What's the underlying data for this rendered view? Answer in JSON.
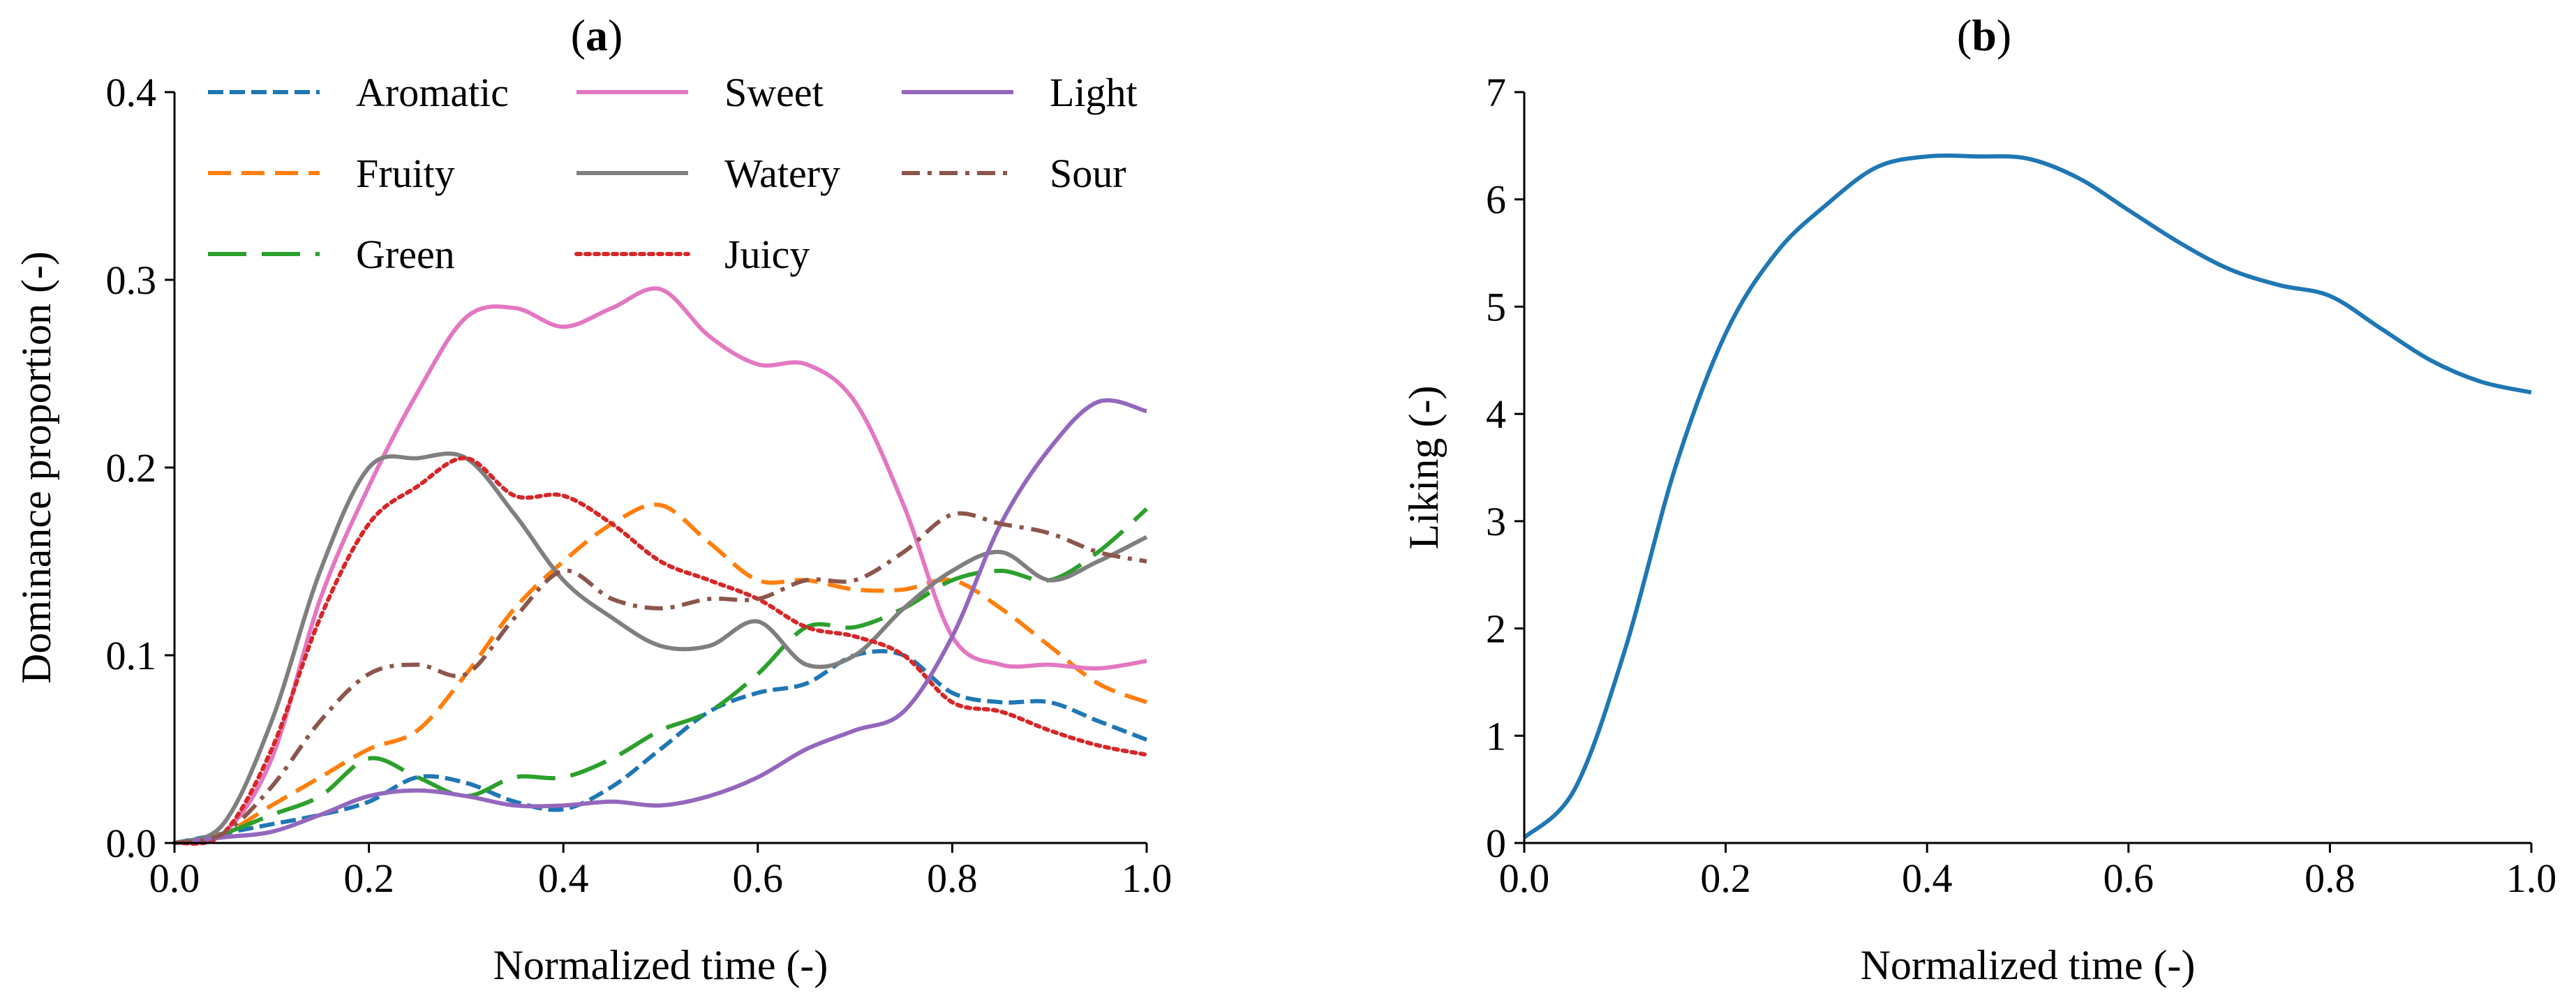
{
  "chart_data": [
    {
      "type": "line",
      "panel": "a",
      "title": "(a)",
      "title_bold": "a",
      "xlabel": "Normalized time (-)",
      "ylabel": "Dominance proportion (-)",
      "xlim": [
        0,
        1
      ],
      "ylim": [
        0,
        0.4
      ],
      "xticks": [
        "0.0",
        "0.2",
        "0.4",
        "0.6",
        "0.8",
        "1.0"
      ],
      "yticks": [
        "0.0",
        "0.1",
        "0.2",
        "0.3",
        "0.4"
      ],
      "legend_position": "top, three columns",
      "x": [
        0,
        0.05,
        0.1,
        0.15,
        0.2,
        0.25,
        0.3,
        0.35,
        0.4,
        0.45,
        0.5,
        0.55,
        0.6,
        0.65,
        0.7,
        0.75,
        0.8,
        0.85,
        0.9,
        0.95,
        1.0
      ],
      "series": [
        {
          "name": "Aromatic",
          "color": "#1f77b4",
          "dash": "dashed",
          "values": [
            0,
            0.005,
            0.01,
            0.015,
            0.022,
            0.035,
            0.032,
            0.022,
            0.018,
            0.03,
            0.05,
            0.07,
            0.08,
            0.085,
            0.1,
            0.1,
            0.08,
            0.075,
            0.075,
            0.065,
            0.055
          ]
        },
        {
          "name": "Fruity",
          "color": "#ff7f0e",
          "dash": "medium-dashed",
          "values": [
            0,
            0.005,
            0.02,
            0.035,
            0.05,
            0.06,
            0.09,
            0.125,
            0.15,
            0.17,
            0.18,
            0.16,
            0.14,
            0.14,
            0.135,
            0.135,
            0.14,
            0.125,
            0.105,
            0.085,
            0.075
          ]
        },
        {
          "name": "Green",
          "color": "#2ca02c",
          "dash": "long-dashed",
          "values": [
            0,
            0.005,
            0.015,
            0.025,
            0.045,
            0.035,
            0.025,
            0.035,
            0.035,
            0.045,
            0.06,
            0.07,
            0.09,
            0.115,
            0.115,
            0.125,
            0.14,
            0.145,
            0.14,
            0.155,
            0.178
          ]
        },
        {
          "name": "Sweet",
          "color": "#e377c2",
          "dash": "solid",
          "values": [
            0,
            0.005,
            0.045,
            0.13,
            0.19,
            0.24,
            0.28,
            0.285,
            0.275,
            0.285,
            0.295,
            0.27,
            0.255,
            0.255,
            0.235,
            0.18,
            0.11,
            0.095,
            0.095,
            0.093,
            0.097
          ]
        },
        {
          "name": "Watery",
          "color": "#7f7f7f",
          "dash": "solid",
          "values": [
            0,
            0.01,
            0.065,
            0.145,
            0.2,
            0.205,
            0.205,
            0.175,
            0.14,
            0.12,
            0.105,
            0.105,
            0.118,
            0.095,
            0.1,
            0.125,
            0.145,
            0.155,
            0.14,
            0.15,
            0.163
          ]
        },
        {
          "name": "Juicy",
          "color": "#d62728",
          "dash": "dotted",
          "values": [
            0,
            0.005,
            0.05,
            0.12,
            0.17,
            0.19,
            0.205,
            0.185,
            0.185,
            0.17,
            0.15,
            0.14,
            0.13,
            0.115,
            0.11,
            0.1,
            0.075,
            0.07,
            0.06,
            0.052,
            0.047
          ]
        },
        {
          "name": "Light",
          "color": "#9467bd",
          "dash": "solid",
          "values": [
            0,
            0.003,
            0.006,
            0.015,
            0.025,
            0.028,
            0.025,
            0.02,
            0.02,
            0.022,
            0.02,
            0.025,
            0.035,
            0.05,
            0.06,
            0.07,
            0.11,
            0.17,
            0.21,
            0.235,
            0.23
          ]
        },
        {
          "name": "Sour",
          "color": "#8c564b",
          "dash": "dash-dot",
          "values": [
            0,
            0.005,
            0.03,
            0.065,
            0.09,
            0.095,
            0.09,
            0.12,
            0.145,
            0.13,
            0.125,
            0.13,
            0.13,
            0.14,
            0.14,
            0.155,
            0.175,
            0.17,
            0.165,
            0.155,
            0.15
          ]
        }
      ]
    },
    {
      "type": "line",
      "panel": "b",
      "title": "(b)",
      "title_bold": "b",
      "xlabel": "Normalized time (-)",
      "ylabel": "Liking (-)",
      "xlim": [
        0,
        1
      ],
      "ylim": [
        0,
        7
      ],
      "xticks": [
        "0.0",
        "0.2",
        "0.4",
        "0.6",
        "0.8",
        "1.0"
      ],
      "yticks": [
        "0",
        "1",
        "2",
        "3",
        "4",
        "5",
        "6",
        "7"
      ],
      "x": [
        0,
        0.05,
        0.1,
        0.15,
        0.2,
        0.25,
        0.3,
        0.35,
        0.4,
        0.45,
        0.5,
        0.55,
        0.6,
        0.65,
        0.7,
        0.75,
        0.8,
        0.85,
        0.9,
        0.95,
        1.0
      ],
      "series": [
        {
          "name": "Liking",
          "color": "#1f77b4",
          "dash": "solid",
          "values": [
            0.05,
            0.5,
            1.8,
            3.5,
            4.75,
            5.5,
            5.95,
            6.3,
            6.4,
            6.4,
            6.38,
            6.2,
            5.9,
            5.6,
            5.35,
            5.2,
            5.1,
            4.8,
            4.5,
            4.3,
            4.2
          ]
        }
      ]
    }
  ]
}
